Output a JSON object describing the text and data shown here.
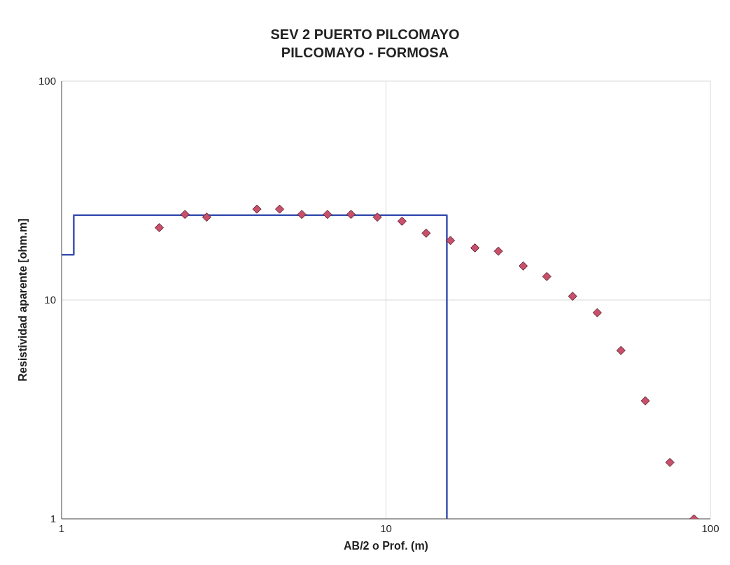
{
  "chart_data": {
    "type": "scatter",
    "title": "SEV 2 PUERTO PILCOMAYO",
    "subtitle": "PILCOMAYO - FORMOSA",
    "xlabel": "AB/2 o Prof. (m)",
    "ylabel": "Resistividad aparente [ohm.m]",
    "log": "xy",
    "xlim": [
      1,
      100
    ],
    "ylim": [
      1,
      100
    ],
    "xticks": [
      1,
      10,
      100
    ],
    "yticks": [
      1,
      10,
      100
    ],
    "grid": true,
    "series": [
      {
        "marker": "diamond",
        "color": "#c8506a",
        "x": [
          2,
          2.4,
          2.8,
          4,
          4.7,
          5.5,
          6.6,
          7.8,
          9.4,
          11.2,
          13.3,
          15.8,
          18.8,
          22.2,
          26.5,
          31.3,
          37.6,
          44.8,
          53,
          63,
          75,
          89
        ],
        "values": [
          21.4,
          24.6,
          23.9,
          26,
          26,
          24.6,
          24.6,
          24.6,
          23.9,
          22.9,
          20.2,
          18.7,
          17.3,
          16.7,
          14.3,
          12.8,
          10.4,
          8.75,
          5.88,
          3.46,
          1.81,
          1
        ]
      },
      {
        "type": "line",
        "marker": "none",
        "color": "#3a50b0",
        "x": [
          1,
          1.09,
          1.09,
          15.4,
          15.4
        ],
        "values": [
          16.1,
          16.1,
          24.4,
          24.4,
          1
        ]
      }
    ]
  }
}
